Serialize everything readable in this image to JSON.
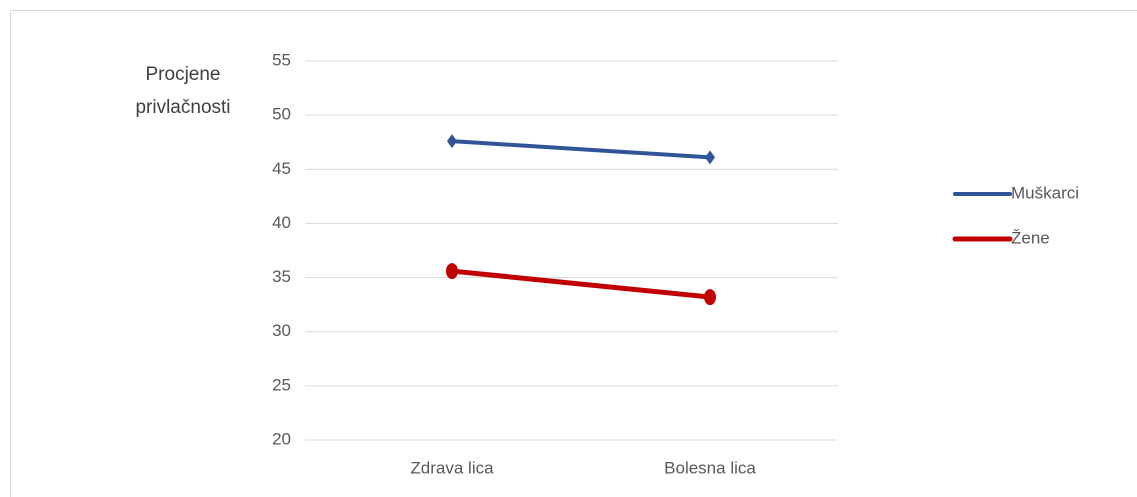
{
  "chart_data": {
    "type": "line",
    "y_label": "Procjene privlačnosti",
    "categories": [
      "Zdrava lica",
      "Bolesna lica"
    ],
    "series": [
      {
        "name": "Muškarci",
        "color": "#2f5597",
        "marker": "diamond",
        "values": [
          47.6,
          46.1
        ]
      },
      {
        "name": "Žene",
        "color": "#c00000",
        "marker": "ellipse",
        "values": [
          35.6,
          33.2
        ]
      }
    ],
    "ylim": [
      20,
      55
    ],
    "yticks": [
      20,
      25,
      30,
      35,
      40,
      45,
      50,
      55
    ],
    "grid": true,
    "legend": "right"
  }
}
